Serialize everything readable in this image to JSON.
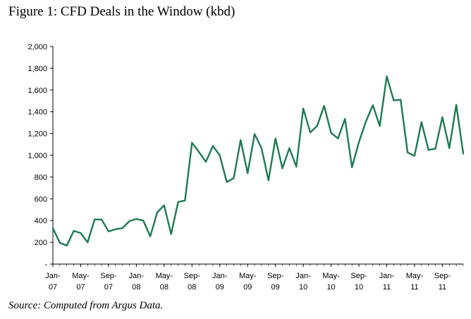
{
  "title": "Figure 1: CFD Deals in the Window (kbd)",
  "source": "Source: Computed from Argus Data.",
  "chart_data": {
    "type": "line",
    "title": "Figure 1: CFD Deals in the Window (kbd)",
    "xlabel": "",
    "ylabel": "",
    "ylim": [
      0,
      2000
    ],
    "grid": false,
    "legend": "none",
    "line_color": "#1e7a52",
    "y_ticks": [
      {
        "value": 0,
        "label": "-"
      },
      {
        "value": 200,
        "label": "200"
      },
      {
        "value": 400,
        "label": "400"
      },
      {
        "value": 600,
        "label": "600"
      },
      {
        "value": 800,
        "label": "800"
      },
      {
        "value": 1000,
        "label": "1,000"
      },
      {
        "value": 1200,
        "label": "1,200"
      },
      {
        "value": 1400,
        "label": "1,400"
      },
      {
        "value": 1600,
        "label": "1,600"
      },
      {
        "value": 1800,
        "label": "1,800"
      },
      {
        "value": 2000,
        "label": "2,000"
      }
    ],
    "x_ticks": [
      {
        "index": 0,
        "line1": "Jan-",
        "line2": "07"
      },
      {
        "index": 4,
        "line1": "May-",
        "line2": "07"
      },
      {
        "index": 8,
        "line1": "Sep-",
        "line2": "07"
      },
      {
        "index": 12,
        "line1": "Jan-",
        "line2": "08"
      },
      {
        "index": 16,
        "line1": "May-",
        "line2": "08"
      },
      {
        "index": 20,
        "line1": "Sep-",
        "line2": "08"
      },
      {
        "index": 24,
        "line1": "Jan-",
        "line2": "09"
      },
      {
        "index": 28,
        "line1": "May-",
        "line2": "09"
      },
      {
        "index": 32,
        "line1": "Sep-",
        "line2": "09"
      },
      {
        "index": 36,
        "line1": "Jan-",
        "line2": "10"
      },
      {
        "index": 40,
        "line1": "May-",
        "line2": "10"
      },
      {
        "index": 44,
        "line1": "Sep-",
        "line2": "10"
      },
      {
        "index": 48,
        "line1": "Jan-",
        "line2": "11"
      },
      {
        "index": 52,
        "line1": "May-",
        "line2": "11"
      },
      {
        "index": 56,
        "line1": "Sep-",
        "line2": "11"
      }
    ],
    "x": [
      "Jan-07",
      "Feb-07",
      "Mar-07",
      "Apr-07",
      "May-07",
      "Jun-07",
      "Jul-07",
      "Aug-07",
      "Sep-07",
      "Oct-07",
      "Nov-07",
      "Dec-07",
      "Jan-08",
      "Feb-08",
      "Mar-08",
      "Apr-08",
      "May-08",
      "Jun-08",
      "Jul-08",
      "Aug-08",
      "Sep-08",
      "Oct-08",
      "Nov-08",
      "Dec-08",
      "Jan-09",
      "Feb-09",
      "Mar-09",
      "Apr-09",
      "May-09",
      "Jun-09",
      "Jul-09",
      "Aug-09",
      "Sep-09",
      "Oct-09",
      "Nov-09",
      "Dec-09",
      "Jan-10",
      "Feb-10",
      "Mar-10",
      "Apr-10",
      "May-10",
      "Jun-10",
      "Jul-10",
      "Aug-10",
      "Sep-10",
      "Oct-10",
      "Nov-10",
      "Dec-10",
      "Jan-11",
      "Feb-11",
      "Mar-11",
      "Apr-11",
      "May-11",
      "Jun-11",
      "Jul-11",
      "Aug-11",
      "Sep-11",
      "Oct-11",
      "Nov-11",
      "Dec-11"
    ],
    "series": [
      {
        "values": [
          330,
          195,
          170,
          305,
          285,
          200,
          410,
          410,
          300,
          320,
          330,
          395,
          415,
          400,
          255,
          475,
          540,
          275,
          570,
          585,
          1115,
          1030,
          940,
          1085,
          1000,
          755,
          790,
          1140,
          835,
          1195,
          1065,
          770,
          1155,
          880,
          1065,
          895,
          1430,
          1210,
          1270,
          1455,
          1205,
          1155,
          1335,
          890,
          1120,
          1310,
          1460,
          1270,
          1725,
          1505,
          1510,
          1025,
          995,
          1305,
          1050,
          1060,
          1350,
          1065,
          1465,
          1015
        ]
      }
    ]
  }
}
